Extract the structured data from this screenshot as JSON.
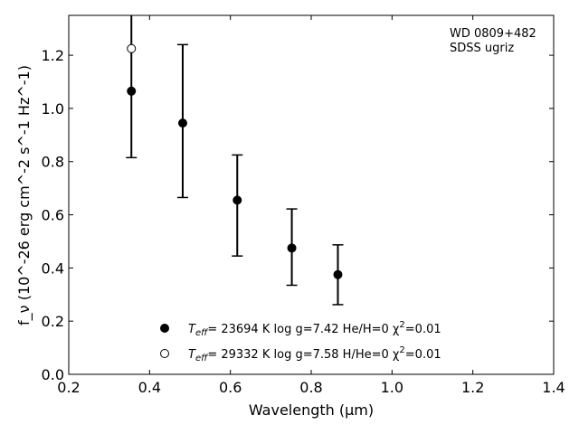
{
  "chart_data": {
    "type": "scatter",
    "xlabel": "Wavelength (μm)",
    "ylabel": "f_ν (10^-26 erg cm^-2 s^-1 Hz^-1)",
    "xlim": [
      0.2,
      1.4
    ],
    "ylim": [
      0.0,
      1.35
    ],
    "xticks": [
      "0.2",
      "0.4",
      "0.6",
      "0.8",
      "1.0",
      "1.2",
      "1.4"
    ],
    "yticks": [
      "0.0",
      "0.2",
      "0.4",
      "0.6",
      "0.8",
      "1.0",
      "1.2"
    ],
    "grid": false,
    "annotations": [
      "WD 0809+482",
      "SDSS ugriz"
    ],
    "observed": {
      "x": [
        0.355,
        0.482,
        0.617,
        0.752,
        0.866
      ],
      "y": [
        1.065,
        0.945,
        0.655,
        0.475,
        0.375
      ],
      "err_low": [
        0.815,
        0.665,
        0.445,
        0.335,
        0.262
      ],
      "err_high": [
        1.36,
        1.24,
        0.825,
        0.622,
        0.487
      ]
    },
    "series": [
      {
        "marker": "filled",
        "legend_teff": "T",
        "legend_teff_sub": "eff",
        "legend_rest": "= 23694 K  log g=7.42  He/H=0  χ",
        "legend_sup": "2",
        "legend_end": "=0.01",
        "x": [
          0.355,
          0.482,
          0.617,
          0.752,
          0.866
        ],
        "y": [
          1.065,
          0.945,
          0.655,
          0.475,
          0.375
        ]
      },
      {
        "marker": "open",
        "legend_teff": "T",
        "legend_teff_sub": "eff",
        "legend_rest": "= 29332 K  log g=7.58  H/He=0  χ",
        "legend_sup": "2",
        "legend_end": "=0.01",
        "x": [
          0.355
        ],
        "y": [
          1.225
        ]
      }
    ]
  }
}
